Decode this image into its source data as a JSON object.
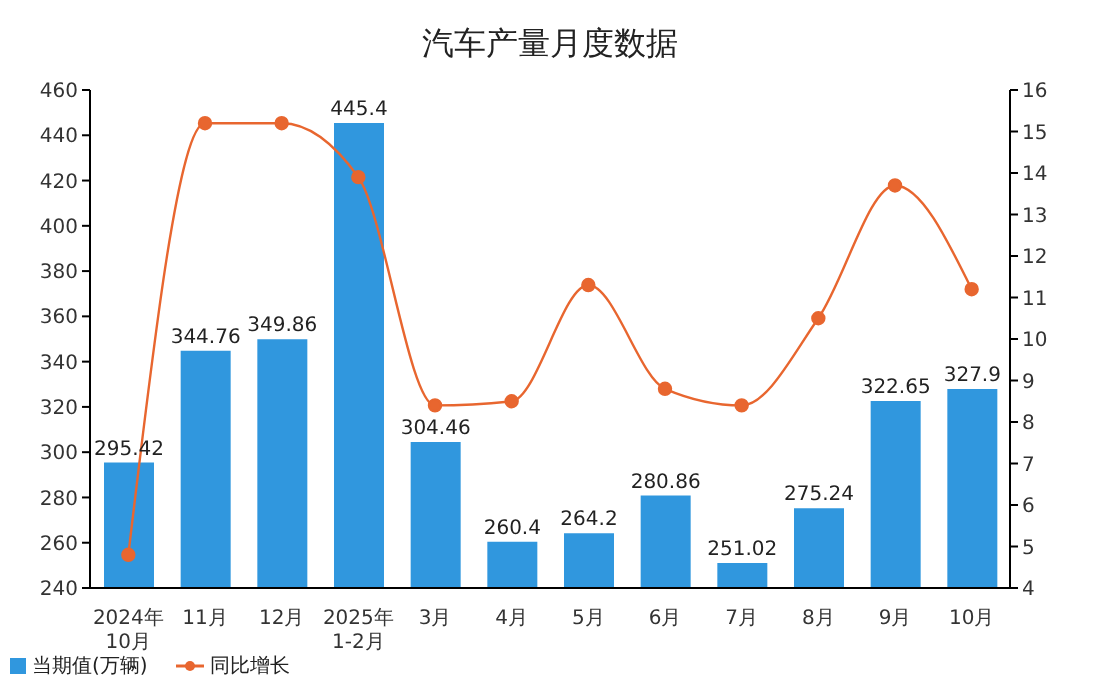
{
  "chart_data": {
    "type": "bar",
    "title": "汽车产量月度数据",
    "categories": [
      "2024年\n10月",
      "11月",
      "12月",
      "2025年\n1-2月",
      "3月",
      "4月",
      "5月",
      "6月",
      "7月",
      "8月",
      "9月",
      "10月"
    ],
    "series": [
      {
        "name": "当期值(万辆)",
        "color": "#3097de",
        "values": [
          295.42,
          344.76,
          349.86,
          445.4,
          304.46,
          260.4,
          264.2,
          280.86,
          251.02,
          275.24,
          322.65,
          327.9
        ],
        "value_labels": [
          "295.42",
          "344.76",
          "349.86",
          "445.4",
          "304.46",
          "260.4",
          "264.2",
          "280.86",
          "251.02",
          "275.24",
          "322.65",
          "327.9"
        ]
      },
      {
        "name": "同比增长",
        "type": "line",
        "axis": "y2",
        "color": "#e8662f",
        "values": [
          4.8,
          15.2,
          15.2,
          13.9,
          8.4,
          8.5,
          11.3,
          8.8,
          8.4,
          10.5,
          13.7,
          11.2
        ]
      }
    ],
    "ylim": [
      240,
      460
    ],
    "yticks": [
      240,
      260,
      280,
      300,
      320,
      340,
      360,
      380,
      400,
      420,
      440,
      460
    ],
    "y2lim": [
      4,
      16
    ],
    "y2ticks": [
      4,
      5,
      6,
      7,
      8,
      9,
      10,
      11,
      12,
      13,
      14,
      15,
      16
    ],
    "grid": false,
    "legend": "bottom left",
    "marker": "circle",
    "line_style": "solid"
  }
}
